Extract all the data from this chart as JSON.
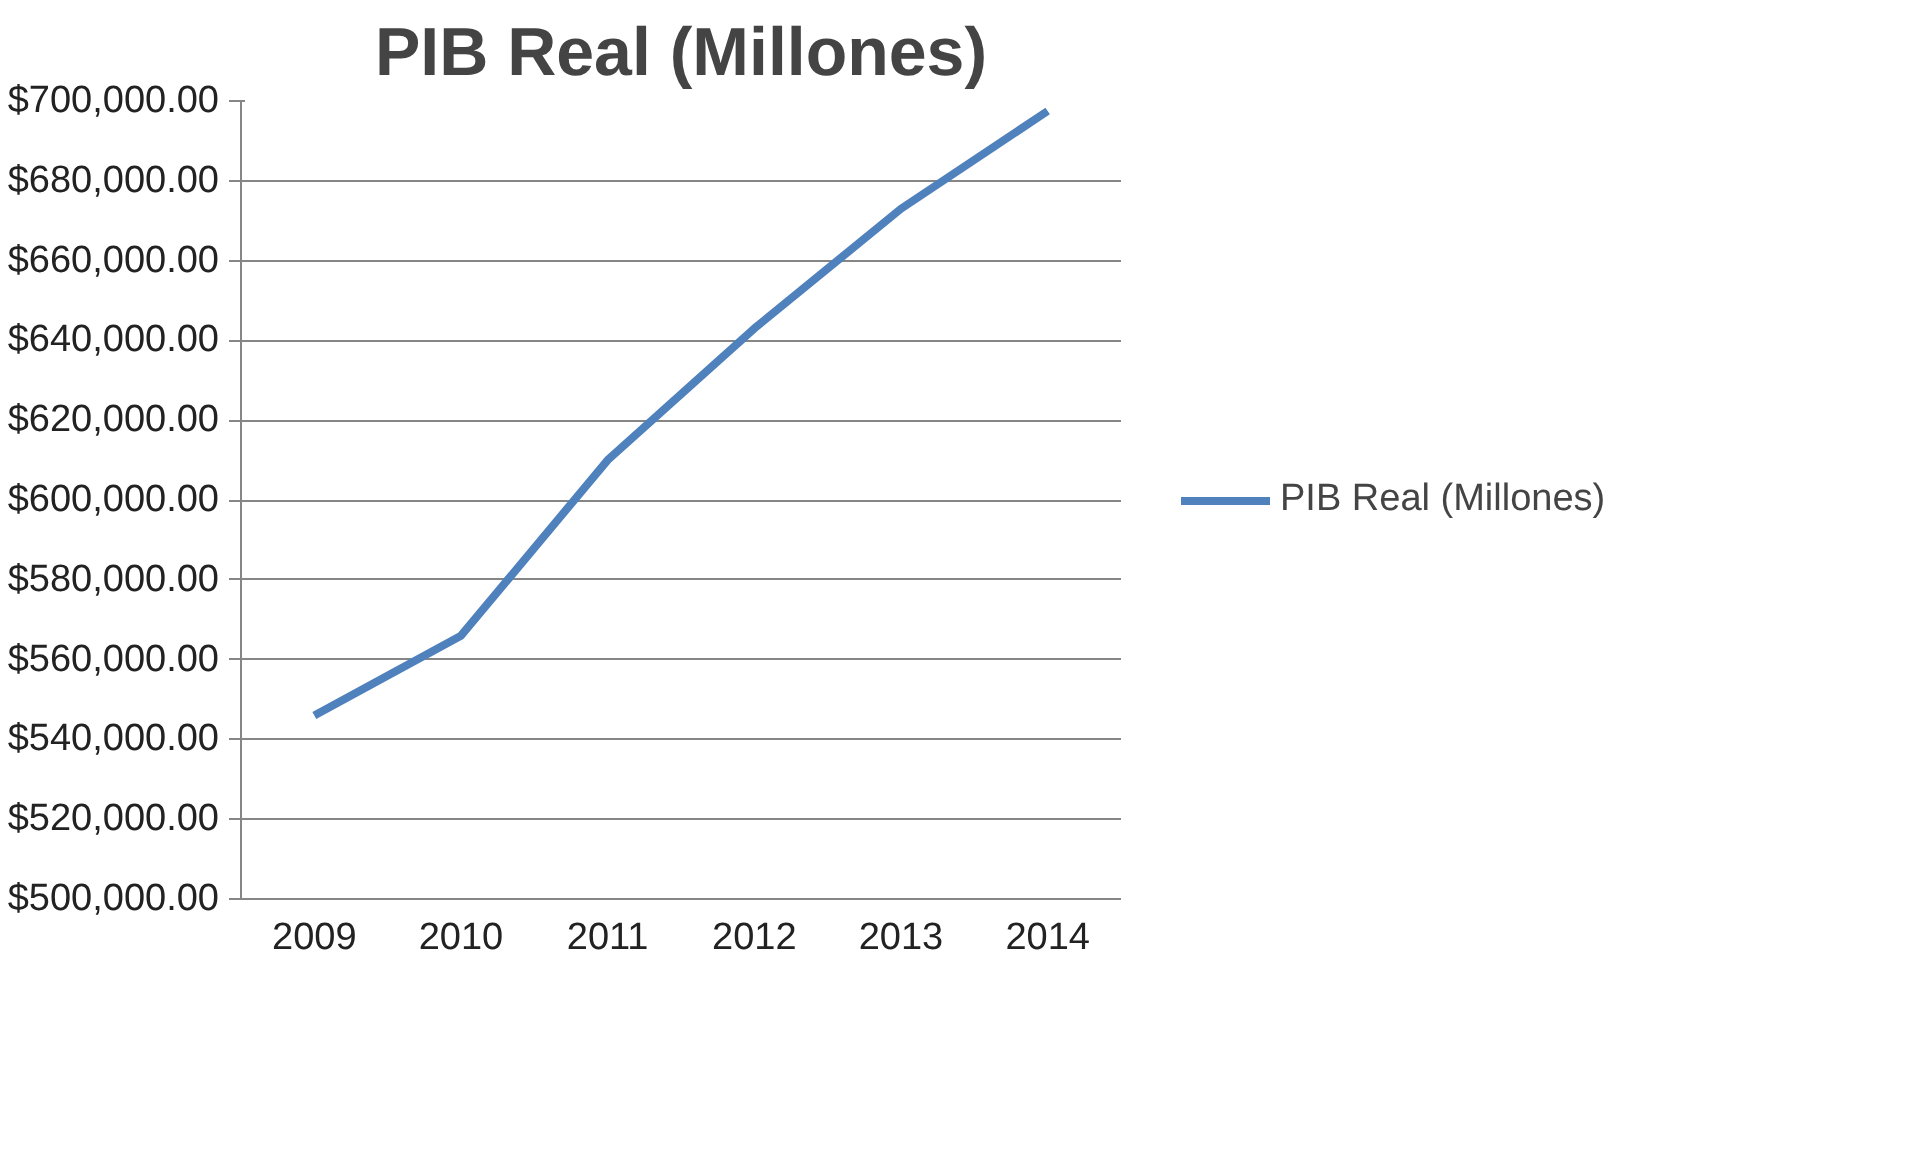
{
  "chart_data": {
    "type": "line",
    "title": "PIB Real (Millones)",
    "categories": [
      "2009",
      "2010",
      "2011",
      "2012",
      "2013",
      "2014"
    ],
    "series": [
      {
        "name": "PIB Real (Millones)",
        "color": "#4f81bd",
        "values": [
          546000,
          566000,
          610000,
          643000,
          673000,
          697500
        ]
      }
    ],
    "ylim": [
      500000,
      700000
    ],
    "yticks": [
      {
        "value": 500000,
        "label": "$500,000.00"
      },
      {
        "value": 520000,
        "label": "$520,000.00"
      },
      {
        "value": 540000,
        "label": "$540,000.00"
      },
      {
        "value": 560000,
        "label": "$560,000.00"
      },
      {
        "value": 580000,
        "label": "$580,000.00"
      },
      {
        "value": 600000,
        "label": "$600,000.00"
      },
      {
        "value": 620000,
        "label": "$620,000.00"
      },
      {
        "value": 640000,
        "label": "$640,000.00"
      },
      {
        "value": 660000,
        "label": "$660,000.00"
      },
      {
        "value": 680000,
        "label": "$680,000.00"
      },
      {
        "value": 700000,
        "label": "$700,000.00"
      }
    ],
    "grid": "y",
    "legend": "right",
    "marker": "none",
    "line_style": "solid"
  }
}
